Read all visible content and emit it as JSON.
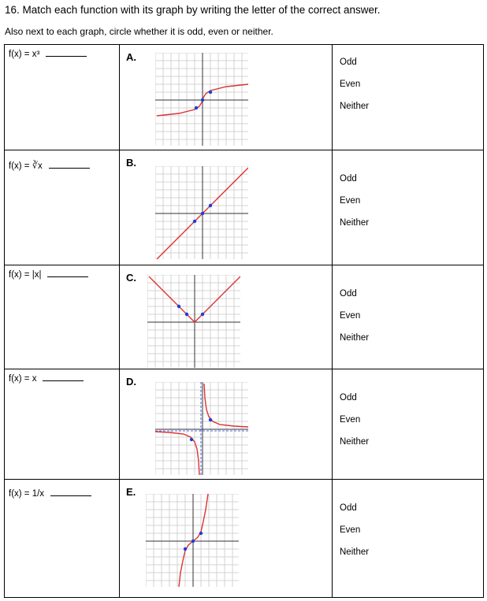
{
  "header": {
    "title": "16. Match each function with its graph by writing the letter of the correct answer.",
    "subtitle": "Also next to each graph, circle whether it is odd, even or neither."
  },
  "options": [
    "Odd",
    "Even",
    "Neither"
  ],
  "rows": [
    {
      "function": "f(x) = x³",
      "letter": "A."
    },
    {
      "function": "f(x) = ∛x",
      "letter": "B."
    },
    {
      "function": "f(x) = |x|",
      "letter": "C."
    },
    {
      "function": "f(x) = x",
      "letter": "D."
    },
    {
      "function": "f(x) = 1/x",
      "letter": "E."
    }
  ],
  "colors": {
    "curve": "#dd3333",
    "points": "#1a3fd6",
    "grid": "#c8c8c8"
  }
}
